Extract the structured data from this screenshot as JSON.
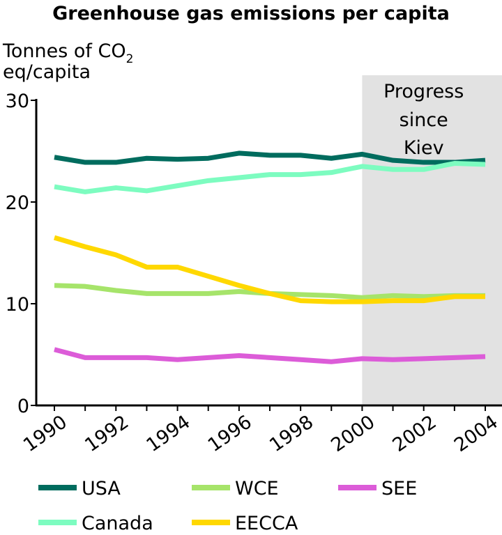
{
  "chart_data": {
    "type": "line",
    "title": "Greenhouse gas emissions per capita",
    "ylabel_line1": "Tonnes of CO",
    "ylabel_sub": "2",
    "ylabel_line2": "eq/capita",
    "xlabel": "",
    "ylim": [
      0,
      30
    ],
    "xlim": [
      1990,
      2004
    ],
    "yticks": [
      "0",
      "10",
      "20",
      "30"
    ],
    "xtick_labels": [
      "1990",
      "1992",
      "1994",
      "1996",
      "1998",
      "2000",
      "2002",
      "2004"
    ],
    "grid": false,
    "x": [
      1990,
      1991,
      1992,
      1993,
      1994,
      1995,
      1996,
      1997,
      1998,
      1999,
      2000,
      2001,
      2002,
      2003,
      2004
    ],
    "annotation": {
      "lines": [
        "Progress",
        "since",
        "Kiev"
      ],
      "from": 2000,
      "color": "#e2e2e2"
    },
    "series": [
      {
        "name": "USA",
        "color": "#006c5e",
        "values": [
          24.4,
          23.9,
          23.9,
          24.3,
          24.2,
          24.3,
          24.8,
          24.6,
          24.6,
          24.3,
          24.7,
          24.1,
          23.9,
          23.9,
          24.1
        ]
      },
      {
        "name": "Canada",
        "color": "#7dfcc0",
        "values": [
          21.5,
          21.0,
          21.4,
          21.1,
          21.6,
          22.1,
          22.4,
          22.7,
          22.7,
          22.9,
          23.5,
          23.2,
          23.2,
          23.8,
          23.7
        ]
      },
      {
        "name": "WCE",
        "color": "#a6e46a",
        "values": [
          11.8,
          11.7,
          11.3,
          11.0,
          11.0,
          11.0,
          11.2,
          11.0,
          10.9,
          10.8,
          10.6,
          10.8,
          10.7,
          10.8,
          10.8
        ]
      },
      {
        "name": "EECCA",
        "color": "#ffd800",
        "values": [
          16.5,
          15.6,
          14.8,
          13.6,
          13.6,
          12.7,
          11.8,
          11.0,
          10.3,
          10.2,
          10.2,
          10.3,
          10.3,
          10.7,
          10.7
        ]
      },
      {
        "name": "SEE",
        "color": "#dc5cd8",
        "values": [
          5.5,
          4.7,
          4.7,
          4.7,
          4.5,
          4.7,
          4.9,
          4.7,
          4.5,
          4.3,
          4.6,
          4.5,
          4.6,
          4.7,
          4.8
        ]
      }
    ],
    "legend": {
      "placement": "bottom",
      "order": [
        0,
        2,
        4,
        1,
        3
      ]
    }
  }
}
